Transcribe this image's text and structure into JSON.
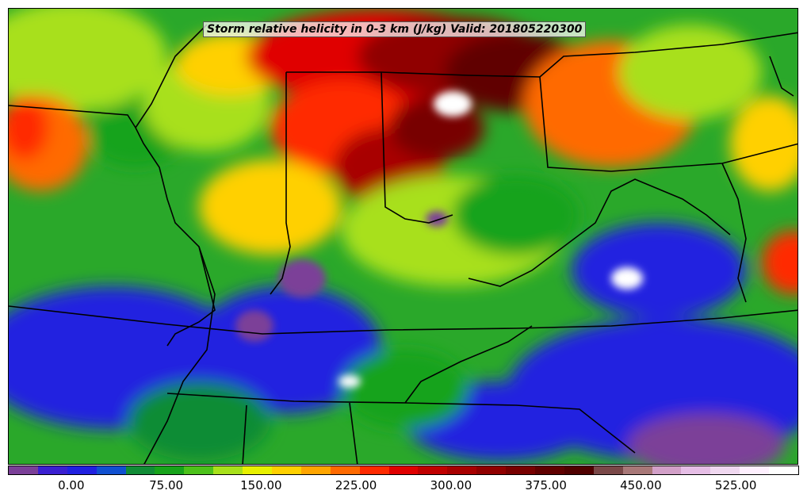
{
  "title": "Storm relative helicity in 0-3 km (J/kg) Valid: 201805220300",
  "colorbar": {
    "colors": [
      "#7b3f98",
      "#3a1fd1",
      "#2020e0",
      "#1050d0",
      "#118c36",
      "#17a31a",
      "#4cc11a",
      "#a8e01a",
      "#e8f000",
      "#ffd000",
      "#ffa500",
      "#ff6a00",
      "#ff2a00",
      "#e00000",
      "#c00000",
      "#a80000",
      "#900000",
      "#780000",
      "#600000",
      "#500000",
      "#7a4848",
      "#a87878",
      "#d2a0c8",
      "#e6bee6",
      "#f0d8f0",
      "#fff0ff",
      "#ffffff"
    ],
    "tick_labels": [
      "0.00",
      "75.00",
      "150.00",
      "225.00",
      "300.00",
      "375.00",
      "450.00",
      "525.00"
    ],
    "tick_values": [
      0,
      75,
      150,
      225,
      300,
      375,
      450,
      525
    ],
    "range": [
      -50,
      575
    ]
  },
  "legend_colors": {
    "land_background": "#2db52d",
    "boundaries": "#000000"
  }
}
